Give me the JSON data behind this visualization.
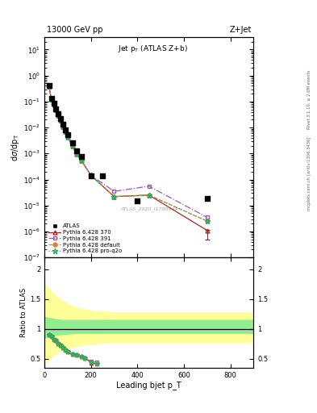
{
  "title_top": "13000 GeV pp",
  "title_right": "Z+Jet",
  "plot_title": "Jet p_{T} (ATLAS Z+b)",
  "ylabel_main": "dσ/dp_T",
  "ylabel_ratio": "Ratio to ATLAS",
  "xlabel": "Leading bjet p_T",
  "rivet_label": "Rivet 3.1.10, ≥ 2.6M events",
  "mcplots_label": "mcplots.cern.ch [arXiv:1306.3436]",
  "atlas_id": "ATLAS_2020_I1788444",
  "atlas_x": [
    20,
    30,
    40,
    50,
    60,
    70,
    80,
    90,
    100,
    120,
    140,
    160,
    200,
    250,
    400,
    700
  ],
  "atlas_y": [
    0.42,
    0.135,
    0.085,
    0.052,
    0.033,
    0.022,
    0.013,
    0.0082,
    0.0052,
    0.0025,
    0.0013,
    0.00075,
    0.000135,
    0.000135,
    1.5e-05,
    1.8e-05
  ],
  "py370_x": [
    20,
    30,
    40,
    50,
    60,
    70,
    80,
    90,
    100,
    120,
    140,
    160,
    200,
    300,
    450,
    700
  ],
  "py370_y": [
    0.38,
    0.12,
    0.08,
    0.048,
    0.03,
    0.019,
    0.011,
    0.007,
    0.0044,
    0.002,
    0.00095,
    0.00053,
    0.000145,
    2.2e-05,
    2.5e-05,
    1.1e-06
  ],
  "py391_x": [
    20,
    30,
    40,
    50,
    60,
    70,
    80,
    90,
    100,
    120,
    140,
    160,
    200,
    300,
    450,
    700
  ],
  "py391_y": [
    0.38,
    0.12,
    0.08,
    0.048,
    0.03,
    0.019,
    0.011,
    0.007,
    0.0044,
    0.002,
    0.00095,
    0.00053,
    0.000145,
    3.5e-05,
    5.5e-05,
    3.5e-06
  ],
  "pydef_x": [
    20,
    30,
    40,
    50,
    60,
    70,
    80,
    90,
    100,
    120,
    140,
    160,
    200,
    300,
    450,
    700
  ],
  "pydef_y": [
    0.38,
    0.12,
    0.08,
    0.048,
    0.03,
    0.019,
    0.011,
    0.007,
    0.0044,
    0.002,
    0.00095,
    0.00053,
    0.000145,
    2.2e-05,
    2.5e-05,
    2.5e-06
  ],
  "pyq2o_x": [
    20,
    30,
    40,
    50,
    60,
    70,
    80,
    90,
    100,
    120,
    140,
    160,
    200,
    300,
    450,
    700
  ],
  "pyq2o_y": [
    0.38,
    0.12,
    0.08,
    0.048,
    0.03,
    0.019,
    0.011,
    0.007,
    0.0044,
    0.002,
    0.00095,
    0.00053,
    0.000145,
    2.2e-05,
    2.5e-05,
    2.5e-06
  ],
  "ratio_x": [
    20,
    30,
    40,
    50,
    60,
    70,
    80,
    90,
    100,
    120,
    140,
    160,
    175,
    200,
    225
  ],
  "ratio_370": [
    0.9,
    0.88,
    0.82,
    0.8,
    0.75,
    0.72,
    0.68,
    0.65,
    0.62,
    0.58,
    0.56,
    0.53,
    0.51,
    0.43,
    0.41
  ],
  "ratio_391": [
    0.9,
    0.88,
    0.82,
    0.8,
    0.75,
    0.72,
    0.68,
    0.65,
    0.62,
    0.58,
    0.56,
    0.53,
    0.51,
    0.46,
    0.44
  ],
  "ratio_def": [
    0.9,
    0.88,
    0.82,
    0.8,
    0.75,
    0.72,
    0.68,
    0.65,
    0.62,
    0.58,
    0.56,
    0.53,
    0.51,
    0.44,
    0.42
  ],
  "ratio_q2o": [
    0.9,
    0.88,
    0.82,
    0.8,
    0.75,
    0.72,
    0.68,
    0.65,
    0.62,
    0.58,
    0.56,
    0.53,
    0.51,
    0.44,
    0.42
  ],
  "band_x": [
    0,
    25,
    50,
    75,
    100,
    125,
    150,
    175,
    200,
    250,
    300,
    400,
    500,
    700,
    900
  ],
  "band_green_lo": [
    0.85,
    0.88,
    0.9,
    0.91,
    0.92,
    0.93,
    0.93,
    0.93,
    0.93,
    0.93,
    0.93,
    0.93,
    0.93,
    0.93,
    0.93
  ],
  "band_green_hi": [
    1.2,
    1.18,
    1.16,
    1.15,
    1.15,
    1.15,
    1.15,
    1.15,
    1.15,
    1.15,
    1.15,
    1.15,
    1.15,
    1.15,
    1.15
  ],
  "band_yellow_lo": [
    0.42,
    0.52,
    0.6,
    0.65,
    0.68,
    0.7,
    0.72,
    0.74,
    0.75,
    0.77,
    0.78,
    0.78,
    0.78,
    0.78,
    0.78
  ],
  "band_yellow_hi": [
    1.75,
    1.65,
    1.55,
    1.48,
    1.42,
    1.38,
    1.35,
    1.33,
    1.31,
    1.29,
    1.28,
    1.28,
    1.28,
    1.28,
    1.28
  ],
  "color_370": "#b22222",
  "color_391": "#9b59b6",
  "color_def": "#e67e22",
  "color_q2o": "#27ae60",
  "color_atlas": "#000000",
  "ylim_main": [
    1e-07,
    30
  ],
  "ylim_ratio": [
    0.35,
    2.2
  ],
  "xlim": [
    0,
    900
  ]
}
